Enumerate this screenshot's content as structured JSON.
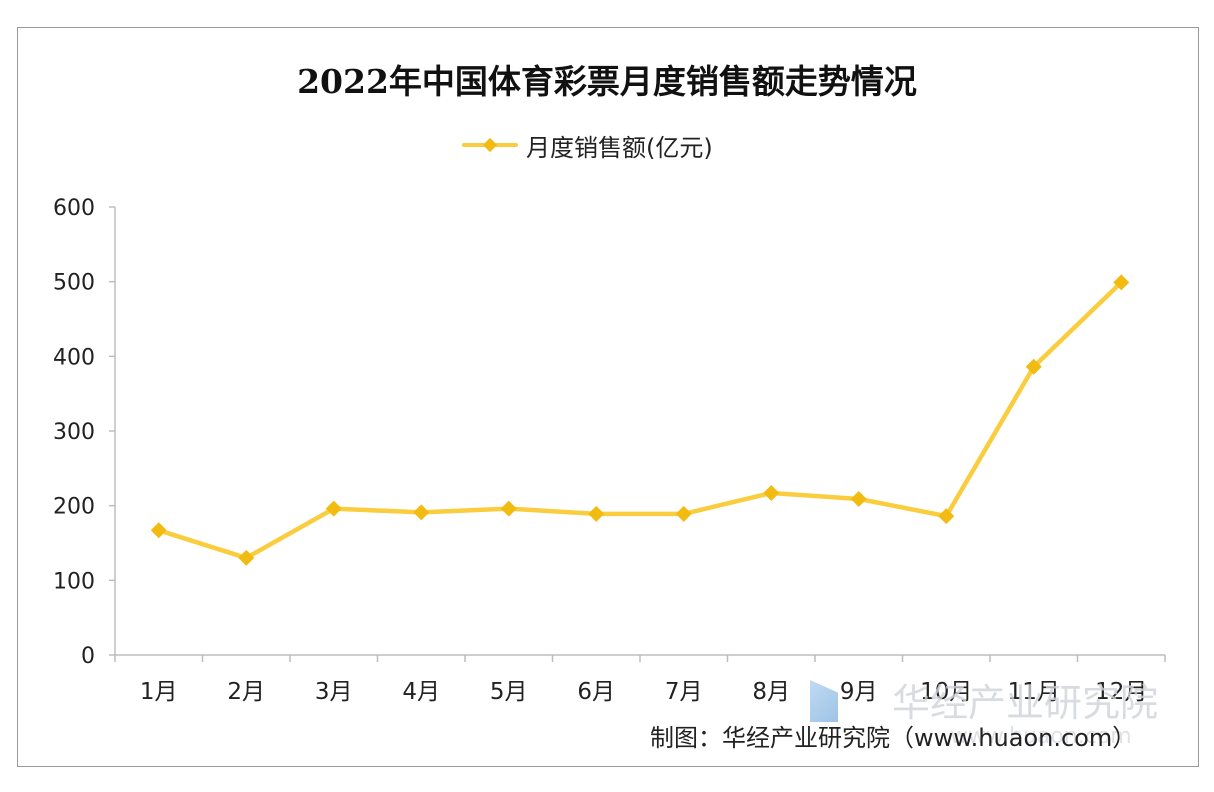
{
  "chart_data": {
    "type": "line",
    "title": "2022年中国体育彩票月度销售额走势情况",
    "categories": [
      "1月",
      "2月",
      "3月",
      "4月",
      "5月",
      "6月",
      "7月",
      "8月",
      "9月",
      "10月",
      "11月",
      "12月"
    ],
    "series": [
      {
        "name": "月度销售额(亿元)",
        "values": [
          167,
          130,
          196,
          191,
          196,
          189,
          189,
          217,
          209,
          186,
          386,
          499
        ]
      }
    ],
    "ylim": [
      0,
      600
    ],
    "yticks": [
      "0",
      "100",
      "200",
      "300",
      "400",
      "500",
      "600"
    ],
    "grid": false,
    "legend_position": "top-center",
    "colors": {
      "series": "#f9cd3e",
      "marker": "#f2bb12",
      "axis": "#bdbdbd"
    }
  },
  "source": "制图：华经产业研究院（www.huaon.com）",
  "watermark": {
    "text": "华经产业研究院",
    "url": "www.huaon.com"
  }
}
